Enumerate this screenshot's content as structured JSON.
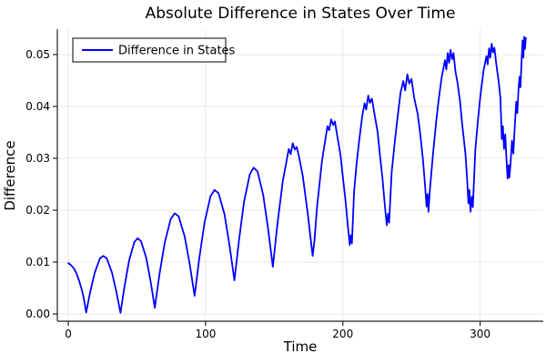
{
  "chart_data": {
    "type": "line",
    "title": "Absolute Difference in States Over Time",
    "xlabel": "Time",
    "ylabel": "Difference",
    "grid": true,
    "legend_position": "top-left",
    "xlim": [
      -8,
      346
    ],
    "ylim": [
      -0.0014,
      0.0549
    ],
    "xticks": {
      "values": [
        0,
        100,
        200,
        300
      ],
      "labels": [
        "0",
        "100",
        "200",
        "300"
      ]
    },
    "yticks": {
      "values": [
        0,
        0.01,
        0.02,
        0.03,
        0.04,
        0.05
      ],
      "labels": [
        "0.00",
        "0.01",
        "0.02",
        "0.03",
        "0.04",
        "0.05"
      ]
    },
    "colors": {
      "line": "#0000ff",
      "grid": "#e8e8e8",
      "axis": "#262626",
      "text": "#000000",
      "background": "#ffffff",
      "legend_border": "#2b2b2b",
      "legend_background": "#ffffff"
    },
    "series": [
      {
        "name": "Difference in States",
        "points": [
          [
            0,
            0.0098
          ],
          [
            2,
            0.0094
          ],
          [
            4,
            0.0088
          ],
          [
            6,
            0.0078
          ],
          [
            8,
            0.0063
          ],
          [
            10,
            0.0045
          ],
          [
            11.5,
            0.0027
          ],
          [
            13,
            0.0003
          ],
          [
            16,
            0.0043
          ],
          [
            19.3,
            0.008
          ],
          [
            23,
            0.0107
          ],
          [
            25.5,
            0.0112
          ],
          [
            28,
            0.0107
          ],
          [
            31.8,
            0.008
          ],
          [
            35,
            0.0043
          ],
          [
            38,
            0.0002
          ],
          [
            41,
            0.0054
          ],
          [
            44.3,
            0.0103
          ],
          [
            48,
            0.0138
          ],
          [
            50.5,
            0.0146
          ],
          [
            53,
            0.014
          ],
          [
            56.8,
            0.0108
          ],
          [
            60,
            0.0062
          ],
          [
            63,
            0.0012
          ],
          [
            66.5,
            0.0078
          ],
          [
            70.3,
            0.0138
          ],
          [
            74.6,
            0.0183
          ],
          [
            77.5,
            0.0194
          ],
          [
            80.4,
            0.0188
          ],
          [
            84.8,
            0.0149
          ],
          [
            88.5,
            0.0095
          ],
          [
            92,
            0.0035
          ],
          [
            95.5,
            0.0109
          ],
          [
            99.3,
            0.0177
          ],
          [
            103.6,
            0.0227
          ],
          [
            106.5,
            0.0239
          ],
          [
            109.4,
            0.0233
          ],
          [
            113.8,
            0.0192
          ],
          [
            117.5,
            0.0131
          ],
          [
            121,
            0.0065
          ],
          [
            124.4,
            0.0143
          ],
          [
            128,
            0.0216
          ],
          [
            132.2,
            0.0269
          ],
          [
            135,
            0.0282
          ],
          [
            137.8,
            0.0275
          ],
          [
            142,
            0.0229
          ],
          [
            145.6,
            0.0163
          ],
          [
            149,
            0.0091
          ],
          [
            152.5,
            0.0177
          ],
          [
            156.3,
            0.0257
          ],
          [
            159,
            0.0295
          ],
          [
            160.6,
            0.0318
          ],
          [
            162,
            0.0308
          ],
          [
            163.5,
            0.0329
          ],
          [
            165,
            0.0317
          ],
          [
            166.4,
            0.0322
          ],
          [
            168,
            0.0304
          ],
          [
            170.8,
            0.0266
          ],
          [
            172.5,
            0.0232
          ],
          [
            174.5,
            0.0192
          ],
          [
            176.5,
            0.0146
          ],
          [
            178,
            0.0112
          ],
          [
            179.3,
            0.0141
          ],
          [
            181.2,
            0.0206
          ],
          [
            184.8,
            0.0295
          ],
          [
            187,
            0.0332
          ],
          [
            188.8,
            0.0362
          ],
          [
            190,
            0.0354
          ],
          [
            191.5,
            0.0375
          ],
          [
            193,
            0.0364
          ],
          [
            194.2,
            0.0371
          ],
          [
            196,
            0.0342
          ],
          [
            198.3,
            0.0306
          ],
          [
            200,
            0.0264
          ],
          [
            201.8,
            0.0222
          ],
          [
            203.5,
            0.0174
          ],
          [
            205,
            0.0133
          ],
          [
            205.8,
            0.0152
          ],
          [
            206.6,
            0.0136
          ],
          [
            208.2,
            0.0236
          ],
          [
            210,
            0.0289
          ],
          [
            211.8,
            0.0332
          ],
          [
            214,
            0.0379
          ],
          [
            215.8,
            0.0406
          ],
          [
            217,
            0.0394
          ],
          [
            218.5,
            0.0421
          ],
          [
            219.7,
            0.0407
          ],
          [
            221.2,
            0.0415
          ],
          [
            223,
            0.0386
          ],
          [
            225.3,
            0.0351
          ],
          [
            227,
            0.0307
          ],
          [
            228.8,
            0.0263
          ],
          [
            230.5,
            0.0212
          ],
          [
            232,
            0.0171
          ],
          [
            232.9,
            0.0193
          ],
          [
            233.7,
            0.0176
          ],
          [
            235.6,
            0.0274
          ],
          [
            238,
            0.0336
          ],
          [
            239.5,
            0.0371
          ],
          [
            242,
            0.0426
          ],
          [
            244,
            0.0449
          ],
          [
            245.4,
            0.0431
          ],
          [
            247,
            0.0462
          ],
          [
            248.4,
            0.0444
          ],
          [
            250,
            0.0453
          ],
          [
            252,
            0.0416
          ],
          [
            254.5,
            0.0386
          ],
          [
            256.5,
            0.0344
          ],
          [
            258.4,
            0.0296
          ],
          [
            260,
            0.0244
          ],
          [
            261,
            0.0207
          ],
          [
            261.7,
            0.0231
          ],
          [
            262.4,
            0.0197
          ],
          [
            263.3,
            0.0236
          ],
          [
            265.7,
            0.0309
          ],
          [
            268,
            0.0371
          ],
          [
            269.8,
            0.0413
          ],
          [
            272,
            0.0456
          ],
          [
            274.4,
            0.0489
          ],
          [
            275.4,
            0.0471
          ],
          [
            276.4,
            0.0503
          ],
          [
            277.4,
            0.0484
          ],
          [
            278.4,
            0.0509
          ],
          [
            279.6,
            0.0491
          ],
          [
            280.6,
            0.0503
          ],
          [
            282,
            0.0468
          ],
          [
            283.5,
            0.0446
          ],
          [
            285.3,
            0.0411
          ],
          [
            287,
            0.0364
          ],
          [
            289.3,
            0.0309
          ],
          [
            290.5,
            0.0261
          ],
          [
            291.5,
            0.0213
          ],
          [
            292.2,
            0.0239
          ],
          [
            293,
            0.0197
          ],
          [
            293.9,
            0.0226
          ],
          [
            294.7,
            0.0206
          ],
          [
            296.5,
            0.0316
          ],
          [
            298.5,
            0.0376
          ],
          [
            300.3,
            0.0423
          ],
          [
            302.5,
            0.0469
          ],
          [
            304.6,
            0.0497
          ],
          [
            305.5,
            0.0481
          ],
          [
            306.5,
            0.0512
          ],
          [
            307.4,
            0.0494
          ],
          [
            308.4,
            0.0521
          ],
          [
            309.4,
            0.0504
          ],
          [
            310.4,
            0.0513
          ],
          [
            312,
            0.0477
          ],
          [
            313.5,
            0.0449
          ],
          [
            314.8,
            0.0415
          ],
          [
            315.8,
            0.0337
          ],
          [
            316.6,
            0.0362
          ],
          [
            317.4,
            0.0318
          ],
          [
            318.3,
            0.0346
          ],
          [
            319.2,
            0.0298
          ],
          [
            320,
            0.0261
          ],
          [
            320.7,
            0.0287
          ],
          [
            321.3,
            0.0263
          ],
          [
            322.2,
            0.0291
          ],
          [
            323.2,
            0.0334
          ],
          [
            324.2,
            0.0309
          ],
          [
            325.3,
            0.0364
          ],
          [
            326.3,
            0.0409
          ],
          [
            327.1,
            0.0387
          ],
          [
            327.9,
            0.0431
          ],
          [
            328.7,
            0.0457
          ],
          [
            329.4,
            0.0437
          ],
          [
            330.1,
            0.0481
          ],
          [
            330.9,
            0.0527
          ],
          [
            331.5,
            0.0494
          ],
          [
            332.1,
            0.0534
          ],
          [
            332.7,
            0.0511
          ],
          [
            333.3,
            0.0532
          ]
        ]
      }
    ]
  }
}
